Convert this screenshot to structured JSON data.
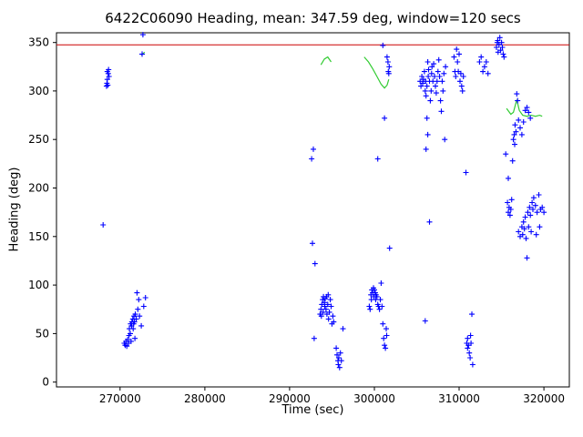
{
  "chart_data": {
    "type": "scatter",
    "title": "6422C06090 Heading, mean: 347.59 deg, window=120 secs",
    "xlabel": "Time (sec)",
    "ylabel": "Heading (deg)",
    "xlim": [
      262500,
      323000
    ],
    "ylim": [
      -5,
      360
    ],
    "xticks": [
      270000,
      280000,
      290000,
      300000,
      310000,
      320000
    ],
    "yticks": [
      0,
      50,
      100,
      150,
      200,
      250,
      300,
      350
    ],
    "grid": false,
    "legend": "none",
    "mean_line": {
      "y": 347.59,
      "color": "#cc0000"
    },
    "marker": "+",
    "marker_color": "#0000ff",
    "smooth_color": "#33cc33",
    "points": [
      [
        268000,
        162
      ],
      [
        268400,
        305
      ],
      [
        268450,
        308
      ],
      [
        268500,
        312
      ],
      [
        268550,
        306
      ],
      [
        268600,
        318
      ],
      [
        268650,
        322
      ],
      [
        268700,
        315
      ],
      [
        268500,
        320
      ],
      [
        270500,
        40
      ],
      [
        270600,
        38
      ],
      [
        270700,
        42
      ],
      [
        270800,
        37
      ],
      [
        270900,
        44
      ],
      [
        271000,
        40
      ],
      [
        271050,
        48
      ],
      [
        271100,
        55
      ],
      [
        271200,
        50
      ],
      [
        271250,
        60
      ],
      [
        271300,
        42
      ],
      [
        271350,
        58
      ],
      [
        271400,
        62
      ],
      [
        271500,
        65
      ],
      [
        271550,
        55
      ],
      [
        271600,
        60
      ],
      [
        271650,
        68
      ],
      [
        271700,
        62
      ],
      [
        271750,
        45
      ],
      [
        271800,
        70
      ],
      [
        271900,
        65
      ],
      [
        272000,
        92
      ],
      [
        272100,
        75
      ],
      [
        272200,
        85
      ],
      [
        272300,
        68
      ],
      [
        272500,
        58
      ],
      [
        272600,
        338
      ],
      [
        272700,
        358
      ],
      [
        272800,
        78
      ],
      [
        273000,
        87
      ],
      [
        292600,
        230
      ],
      [
        292800,
        240
      ],
      [
        292700,
        143
      ],
      [
        293000,
        122
      ],
      [
        292900,
        45
      ],
      [
        293600,
        70
      ],
      [
        293700,
        75
      ],
      [
        293750,
        68
      ],
      [
        293800,
        80
      ],
      [
        293900,
        85
      ],
      [
        293950,
        72
      ],
      [
        294000,
        88
      ],
      [
        294100,
        82
      ],
      [
        294150,
        78
      ],
      [
        294200,
        86
      ],
      [
        294300,
        75
      ],
      [
        294350,
        88
      ],
      [
        294400,
        70
      ],
      [
        294500,
        80
      ],
      [
        294550,
        90
      ],
      [
        294600,
        65
      ],
      [
        294700,
        72
      ],
      [
        294800,
        85
      ],
      [
        294900,
        78
      ],
      [
        295000,
        60
      ],
      [
        295100,
        68
      ],
      [
        295200,
        62
      ],
      [
        295500,
        35
      ],
      [
        295600,
        28
      ],
      [
        295700,
        22
      ],
      [
        295750,
        18
      ],
      [
        295800,
        25
      ],
      [
        295900,
        15
      ],
      [
        296000,
        30
      ],
      [
        296100,
        22
      ],
      [
        296300,
        55
      ],
      [
        299400,
        78
      ],
      [
        299500,
        75
      ],
      [
        299600,
        90
      ],
      [
        299650,
        85
      ],
      [
        299700,
        95
      ],
      [
        299800,
        92
      ],
      [
        299900,
        97
      ],
      [
        299950,
        88
      ],
      [
        300000,
        95
      ],
      [
        300100,
        92
      ],
      [
        300150,
        85
      ],
      [
        300200,
        90
      ],
      [
        300300,
        88
      ],
      [
        300400,
        80
      ],
      [
        300500,
        78
      ],
      [
        300600,
        75
      ],
      [
        300700,
        85
      ],
      [
        300800,
        102
      ],
      [
        300900,
        78
      ],
      [
        301000,
        60
      ],
      [
        301100,
        45
      ],
      [
        301200,
        38
      ],
      [
        301300,
        35
      ],
      [
        301400,
        55
      ],
      [
        301450,
        48
      ],
      [
        300400,
        230
      ],
      [
        301200,
        272
      ],
      [
        301000,
        347
      ],
      [
        301500,
        335
      ],
      [
        301600,
        330
      ],
      [
        301650,
        320
      ],
      [
        301700,
        318
      ],
      [
        301750,
        325
      ],
      [
        301800,
        138
      ],
      [
        305400,
        310
      ],
      [
        305500,
        305
      ],
      [
        305600,
        315
      ],
      [
        305700,
        308
      ],
      [
        305800,
        312
      ],
      [
        305900,
        320
      ],
      [
        306000,
        300
      ],
      [
        306050,
        310
      ],
      [
        306100,
        295
      ],
      [
        306200,
        305
      ],
      [
        306300,
        330
      ],
      [
        306350,
        315
      ],
      [
        306400,
        322
      ],
      [
        306500,
        310
      ],
      [
        306600,
        290
      ],
      [
        306700,
        300
      ],
      [
        306750,
        318
      ],
      [
        306800,
        325
      ],
      [
        306900,
        310
      ],
      [
        307000,
        328
      ],
      [
        307100,
        315
      ],
      [
        307200,
        305
      ],
      [
        307300,
        298
      ],
      [
        307400,
        310
      ],
      [
        307500,
        320
      ],
      [
        307600,
        332
      ],
      [
        307700,
        315
      ],
      [
        307800,
        290
      ],
      [
        307900,
        279
      ],
      [
        308000,
        310
      ],
      [
        308100,
        300
      ],
      [
        308200,
        318
      ],
      [
        308300,
        250
      ],
      [
        308400,
        325
      ],
      [
        306200,
        272
      ],
      [
        306300,
        255
      ],
      [
        306100,
        240
      ],
      [
        306500,
        165
      ],
      [
        306000,
        63
      ],
      [
        309400,
        335
      ],
      [
        309500,
        320
      ],
      [
        309600,
        315
      ],
      [
        309700,
        343
      ],
      [
        309800,
        330
      ],
      [
        309900,
        320
      ],
      [
        310000,
        338
      ],
      [
        310100,
        310
      ],
      [
        310200,
        318
      ],
      [
        310300,
        305
      ],
      [
        310400,
        300
      ],
      [
        310500,
        315
      ],
      [
        310800,
        216
      ],
      [
        310900,
        40
      ],
      [
        311000,
        35
      ],
      [
        311000,
        45
      ],
      [
        311100,
        38
      ],
      [
        311200,
        30
      ],
      [
        311300,
        25
      ],
      [
        311350,
        48
      ],
      [
        311400,
        40
      ],
      [
        311500,
        70
      ],
      [
        311600,
        18
      ],
      [
        312400,
        330
      ],
      [
        312600,
        335
      ],
      [
        312800,
        320
      ],
      [
        313000,
        325
      ],
      [
        313200,
        330
      ],
      [
        313400,
        318
      ],
      [
        314400,
        345
      ],
      [
        314500,
        350
      ],
      [
        314550,
        352
      ],
      [
        314600,
        340
      ],
      [
        314700,
        348
      ],
      [
        314800,
        355
      ],
      [
        314900,
        342
      ],
      [
        315000,
        350
      ],
      [
        315100,
        345
      ],
      [
        315200,
        338
      ],
      [
        315300,
        335
      ],
      [
        315500,
        235
      ],
      [
        315800,
        210
      ],
      [
        316300,
        228
      ],
      [
        315700,
        185
      ],
      [
        315800,
        175
      ],
      [
        315900,
        180
      ],
      [
        316000,
        172
      ],
      [
        316100,
        178
      ],
      [
        316200,
        188
      ],
      [
        316400,
        250
      ],
      [
        316500,
        255
      ],
      [
        316550,
        245
      ],
      [
        316600,
        265
      ],
      [
        316700,
        258
      ],
      [
        316800,
        297
      ],
      [
        316900,
        290
      ],
      [
        317000,
        270
      ],
      [
        317200,
        262
      ],
      [
        317400,
        255
      ],
      [
        317600,
        268
      ],
      [
        317800,
        280
      ],
      [
        318000,
        283
      ],
      [
        318200,
        278
      ],
      [
        318400,
        272
      ],
      [
        317000,
        155
      ],
      [
        317200,
        150
      ],
      [
        317400,
        160
      ],
      [
        317500,
        152
      ],
      [
        317600,
        165
      ],
      [
        317700,
        158
      ],
      [
        317800,
        170
      ],
      [
        317900,
        148
      ],
      [
        318000,
        128
      ],
      [
        318100,
        175
      ],
      [
        318200,
        160
      ],
      [
        318300,
        180
      ],
      [
        318400,
        172
      ],
      [
        318500,
        155
      ],
      [
        318600,
        185
      ],
      [
        318700,
        178
      ],
      [
        318800,
        190
      ],
      [
        319000,
        182
      ],
      [
        319100,
        152
      ],
      [
        319200,
        175
      ],
      [
        319400,
        193
      ],
      [
        319500,
        160
      ],
      [
        319600,
        178
      ],
      [
        319800,
        180
      ],
      [
        320000,
        175
      ]
    ],
    "smooth_segments": [
      [
        [
          272500,
          337
        ],
        [
          272900,
          340
        ]
      ],
      [
        [
          293700,
          327
        ],
        [
          294100,
          333
        ],
        [
          294500,
          335
        ],
        [
          294900,
          330
        ]
      ],
      [
        [
          298800,
          335
        ],
        [
          299300,
          330
        ],
        [
          299800,
          323
        ],
        [
          300300,
          315
        ],
        [
          300800,
          307
        ],
        [
          301200,
          303
        ],
        [
          301500,
          306
        ],
        [
          301700,
          312
        ]
      ],
      [
        [
          315600,
          282
        ],
        [
          316100,
          276
        ],
        [
          316400,
          278
        ],
        [
          316800,
          291
        ],
        [
          317100,
          280
        ],
        [
          317500,
          275
        ],
        [
          318000,
          274
        ],
        [
          318500,
          275
        ],
        [
          319000,
          274
        ],
        [
          319500,
          275
        ],
        [
          319800,
          274
        ]
      ]
    ]
  }
}
